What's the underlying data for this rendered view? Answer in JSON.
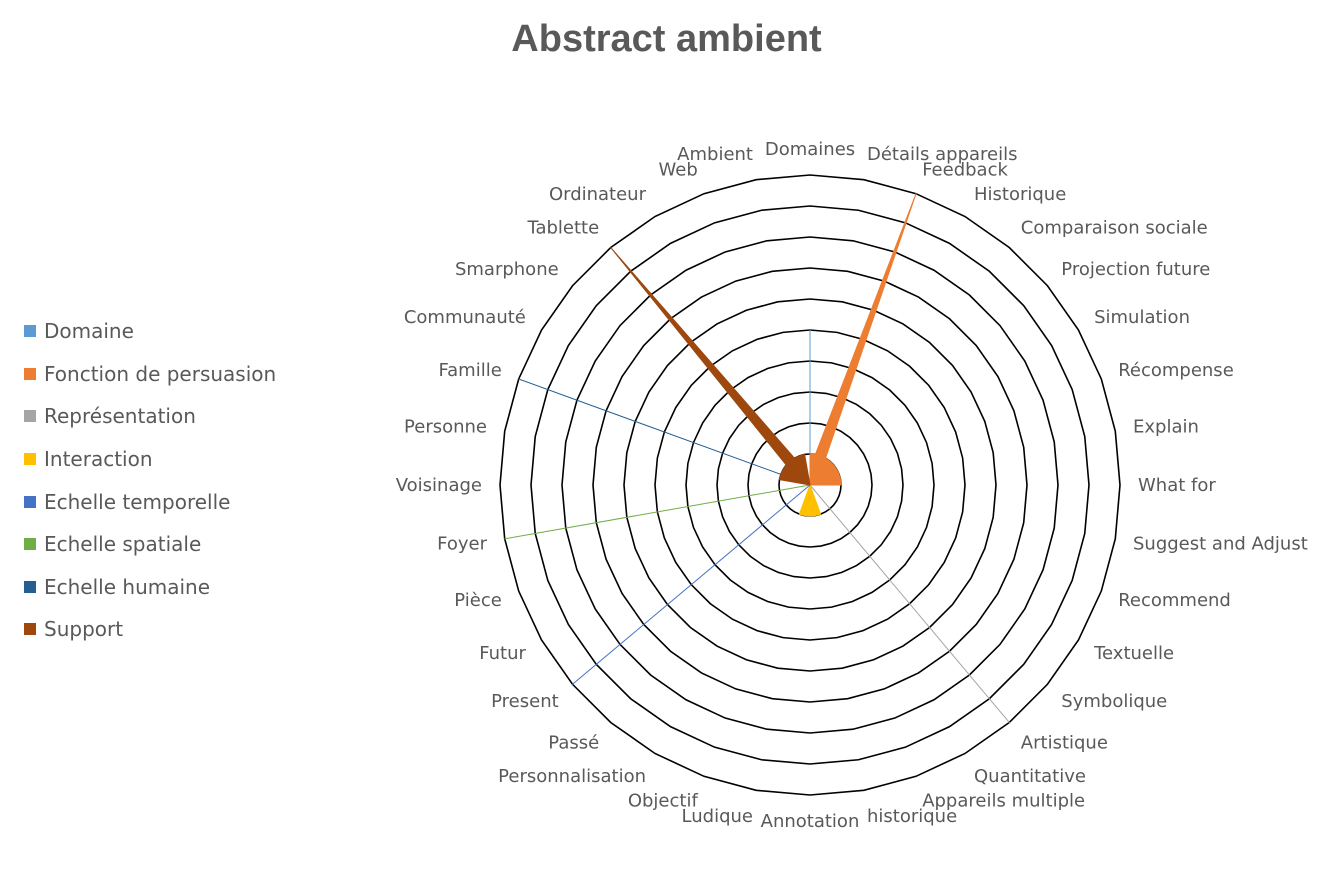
{
  "chart_data": {
    "type": "radar",
    "title": "Abstract ambient",
    "categories": [
      "Domaines",
      "Détails appareils",
      "Feedback",
      "Historique",
      "Comparaison sociale",
      "Projection future",
      "Simulation",
      "Récompense",
      "Explain",
      "What for",
      "Suggest and Adjust",
      "Recommend",
      "Textuelle",
      "Symbolique",
      "Artistique",
      "Quantitative",
      "Appareils multiple",
      "historique",
      "Annotation",
      "Ludique",
      "Objectif",
      "Personnalisation",
      "Passé",
      "Present",
      "Futur",
      "Pièce",
      "Foyer",
      "Voisinage",
      "Personne",
      "Famille",
      "Communauté",
      "Smarphone",
      "Tablette",
      "Ordinateur",
      "Web",
      "Ambient"
    ],
    "rlim": [
      0,
      10
    ],
    "series": [
      {
        "name": "Domaine",
        "color": "#5B9BD5",
        "values": [
          5,
          0,
          0,
          0,
          0,
          0,
          0,
          0,
          0,
          0,
          0,
          0,
          0,
          0,
          0,
          0,
          0,
          0,
          0,
          0,
          0,
          0,
          0,
          0,
          0,
          0,
          0,
          0,
          0,
          0,
          0,
          0,
          0,
          0,
          0,
          0
        ]
      },
      {
        "name": "Fonction de persuasion",
        "color": "#ED7D31",
        "values": [
          1,
          1,
          10,
          1,
          1,
          1,
          1,
          1,
          1,
          1,
          0,
          0,
          0,
          0,
          0,
          0,
          0,
          0,
          0,
          0,
          0,
          0,
          0,
          0,
          0,
          0,
          0,
          0,
          0,
          0,
          0,
          0,
          0,
          0,
          0,
          0
        ]
      },
      {
        "name": "Représentation",
        "color": "#A5A5A5",
        "values": [
          0,
          0,
          0,
          0,
          0,
          0,
          0,
          0,
          0,
          0,
          0,
          0,
          0,
          0,
          10,
          0,
          0,
          0,
          0,
          0,
          0,
          0,
          0,
          0,
          0,
          0,
          0,
          0,
          0,
          0,
          0,
          0,
          0,
          0,
          0,
          0
        ]
      },
      {
        "name": "Interaction",
        "color": "#FFC000",
        "values": [
          0,
          0,
          0,
          0,
          0,
          0,
          0,
          0,
          0,
          0,
          0,
          0,
          0,
          0,
          0,
          0,
          1,
          1,
          1,
          1,
          1,
          0,
          0,
          0,
          0,
          0,
          0,
          0,
          0,
          0,
          0,
          0,
          0,
          0,
          0,
          0
        ]
      },
      {
        "name": "Echelle temporelle",
        "color": "#4472C4",
        "values": [
          0,
          0,
          0,
          0,
          0,
          0,
          0,
          0,
          0,
          0,
          0,
          0,
          0,
          0,
          0,
          0,
          0,
          0,
          0,
          0,
          0,
          0,
          0,
          10,
          0,
          0,
          0,
          0,
          0,
          0,
          0,
          0,
          0,
          0,
          0,
          0
        ]
      },
      {
        "name": "Echelle spatiale",
        "color": "#70AD47",
        "values": [
          0,
          0,
          0,
          0,
          0,
          0,
          0,
          0,
          0,
          0,
          0,
          0,
          0,
          0,
          0,
          0,
          0,
          0,
          0,
          0,
          0,
          0,
          0,
          0,
          0,
          0,
          10,
          0,
          0,
          0,
          0,
          0,
          0,
          0,
          0,
          0
        ]
      },
      {
        "name": "Echelle humaine",
        "color": "#255E91",
        "values": [
          0,
          0,
          0,
          0,
          0,
          0,
          0,
          0,
          0,
          0,
          0,
          0,
          0,
          0,
          0,
          0,
          0,
          0,
          0,
          0,
          0,
          0,
          0,
          0,
          0,
          0,
          0,
          0,
          0,
          10,
          0,
          0,
          0,
          0,
          0,
          0
        ]
      },
      {
        "name": "Support",
        "color": "#9E480E",
        "values": [
          0,
          0,
          0,
          0,
          0,
          0,
          0,
          0,
          0,
          0,
          0,
          0,
          0,
          0,
          0,
          0,
          0,
          0,
          0,
          0,
          0,
          0,
          0,
          0,
          0,
          0,
          0,
          0,
          1,
          1,
          1,
          1,
          10,
          1,
          1,
          1
        ]
      }
    ],
    "grid": true,
    "legend_position": "left"
  }
}
